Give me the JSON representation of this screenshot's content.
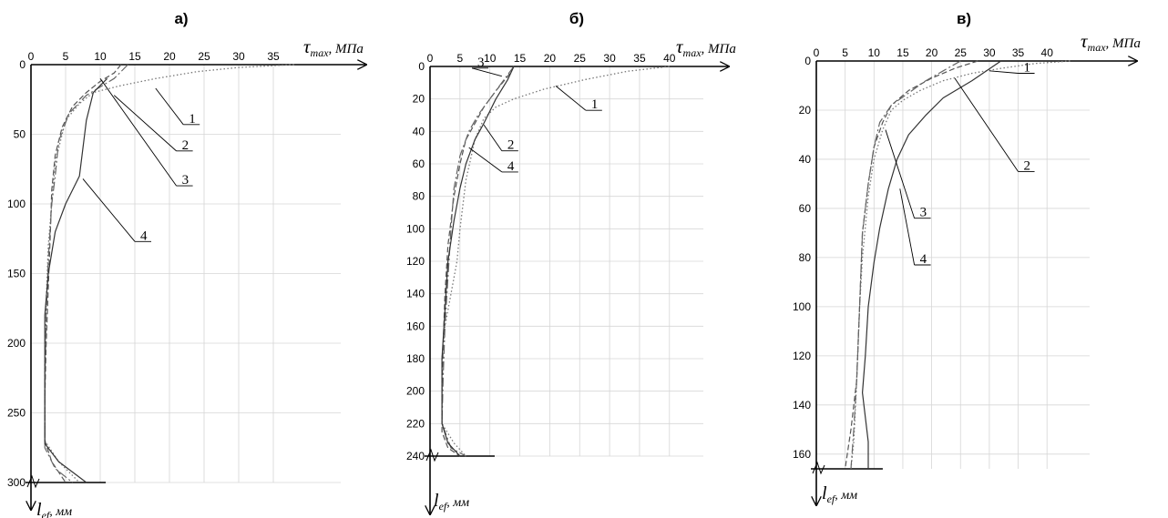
{
  "chart_data": [
    {
      "type": "line",
      "panel_label": "а)",
      "x_axis": {
        "symbol": "τ",
        "subscript": "max",
        "unit": ", МПа",
        "range": [
          0,
          45
        ],
        "ticks": [
          0,
          5,
          10,
          15,
          20,
          25,
          30,
          35
        ]
      },
      "y_axis": {
        "symbol": "l",
        "subscript": "ef",
        "unit": ", мм",
        "range": [
          0,
          300
        ],
        "ticks": [
          0,
          50,
          100,
          150,
          200,
          250,
          300
        ],
        "inverted": true
      },
      "grid": true,
      "series": [
        {
          "name": "1",
          "dash": "1.5,2.5",
          "points": [
            [
              38,
              0
            ],
            [
              30,
              2
            ],
            [
              24,
              5
            ],
            [
              18,
              10
            ],
            [
              13,
              15
            ],
            [
              9,
              20
            ],
            [
              7,
              28
            ],
            [
              5,
              40
            ],
            [
              3.5,
              70
            ],
            [
              3,
              100
            ],
            [
              2.5,
              130
            ],
            [
              2.2,
              170
            ],
            [
              2,
              220
            ],
            [
              2,
              270
            ],
            [
              4,
              285
            ],
            [
              7,
              300
            ]
          ]
        },
        {
          "name": "2",
          "dash": "6,3",
          "points": [
            [
              13,
              0
            ],
            [
              12,
              6
            ],
            [
              10,
              12
            ],
            [
              8,
              20
            ],
            [
              6,
              30
            ],
            [
              4.5,
              45
            ],
            [
              3.5,
              65
            ],
            [
              3,
              90
            ],
            [
              2.8,
              120
            ],
            [
              2.5,
              160
            ],
            [
              2.2,
              200
            ],
            [
              2,
              240
            ],
            [
              2,
              270
            ],
            [
              3,
              285
            ],
            [
              5,
              300
            ]
          ]
        },
        {
          "name": "3",
          "dash": "10,3,2,3",
          "points": [
            [
              14,
              0
            ],
            [
              13,
              5
            ],
            [
              12,
              10
            ],
            [
              10,
              16
            ],
            [
              8,
              22
            ],
            [
              5.5,
              35
            ],
            [
              4,
              55
            ],
            [
              3.5,
              80
            ],
            [
              3,
              100
            ],
            [
              2.5,
              140
            ],
            [
              2.2,
              180
            ],
            [
              2,
              230
            ],
            [
              2,
              275
            ],
            [
              3.5,
              290
            ],
            [
              6,
              300
            ]
          ]
        },
        {
          "name": "4",
          "dash": "",
          "points": [
            [
              11,
              10
            ],
            [
              9,
              20
            ],
            [
              8,
              40
            ],
            [
              7.5,
              60
            ],
            [
              7,
              80
            ],
            [
              5,
              100
            ],
            [
              3.5,
              120
            ],
            [
              2.5,
              150
            ],
            [
              2,
              180
            ],
            [
              2,
              240
            ],
            [
              2,
              272
            ],
            [
              4,
              285
            ],
            [
              8,
              300
            ]
          ]
        }
      ],
      "callouts": [
        {
          "label": "1",
          "anchor": [
            18,
            17
          ],
          "text": [
            22,
            43
          ]
        },
        {
          "label": "2",
          "anchor": [
            12,
            22
          ],
          "text": [
            21,
            62
          ]
        },
        {
          "label": "3",
          "anchor": [
            10,
            10
          ],
          "text": [
            21,
            87
          ]
        },
        {
          "label": "4",
          "anchor": [
            7.5,
            82
          ],
          "text": [
            15,
            127
          ]
        }
      ]
    },
    {
      "type": "line",
      "panel_label": "б)",
      "x_axis": {
        "symbol": "τ",
        "subscript": "max",
        "unit": ", МПа",
        "range": [
          0,
          45
        ],
        "ticks": [
          0,
          5,
          10,
          15,
          20,
          25,
          30,
          35,
          40
        ]
      },
      "y_axis": {
        "symbol": "l",
        "subscript": "ef",
        "unit": ", мм",
        "range": [
          0,
          240
        ],
        "ticks": [
          0,
          20,
          40,
          60,
          80,
          100,
          120,
          140,
          160,
          180,
          200,
          220,
          240
        ],
        "inverted": true
      },
      "grid": true,
      "series": [
        {
          "name": "1",
          "dash": "1.5,2.5",
          "points": [
            [
              40,
              0
            ],
            [
              33,
              3
            ],
            [
              26,
              8
            ],
            [
              19,
              14
            ],
            [
              14,
              20
            ],
            [
              11,
              25
            ],
            [
              9,
              32
            ],
            [
              7.5,
              45
            ],
            [
              6,
              70
            ],
            [
              5,
              100
            ],
            [
              4.5,
              120
            ],
            [
              3.5,
              140
            ],
            [
              2.5,
              160
            ],
            [
              2,
              180
            ],
            [
              2,
              220
            ],
            [
              4,
              232
            ],
            [
              6,
              240
            ]
          ]
        },
        {
          "name": "2",
          "dash": "6,3",
          "points": [
            [
              14,
              0
            ],
            [
              13,
              6
            ],
            [
              11,
              15
            ],
            [
              9,
              25
            ],
            [
              7.5,
              35
            ],
            [
              6,
              45
            ],
            [
              5,
              60
            ],
            [
              4,
              80
            ],
            [
              3,
              110
            ],
            [
              2.5,
              140
            ],
            [
              2.2,
              170
            ],
            [
              2,
              200
            ],
            [
              2,
              225
            ],
            [
              3,
              235
            ],
            [
              5,
              240
            ]
          ]
        },
        {
          "name": "3",
          "dash": "10,3,2,3",
          "points": [
            [
              14,
              0
            ],
            [
              13,
              5
            ],
            [
              12,
              10
            ],
            [
              10,
              20
            ],
            [
              8,
              30
            ],
            [
              6.5,
              40
            ],
            [
              5,
              55
            ],
            [
              4,
              75
            ],
            [
              3.5,
              100
            ],
            [
              3,
              130
            ],
            [
              2.5,
              160
            ],
            [
              2.2,
              190
            ],
            [
              2,
              220
            ],
            [
              3.5,
              235
            ],
            [
              6,
              240
            ]
          ]
        },
        {
          "name": "4",
          "dash": "",
          "points": [
            [
              14,
              0
            ],
            [
              13,
              8
            ],
            [
              11,
              20
            ],
            [
              9,
              35
            ],
            [
              7.5,
              45
            ],
            [
              6,
              60
            ],
            [
              5,
              75
            ],
            [
              4,
              95
            ],
            [
              3,
              120
            ],
            [
              2.5,
              150
            ],
            [
              2,
              180
            ],
            [
              2,
              220
            ],
            [
              3,
              232
            ],
            [
              5,
              240
            ]
          ]
        }
      ],
      "callouts": [
        {
          "label": "1",
          "anchor": [
            21,
            12
          ],
          "text": [
            26,
            27
          ]
        },
        {
          "label": "2",
          "anchor": [
            9,
            36
          ],
          "text": [
            12,
            52
          ]
        },
        {
          "label": "3",
          "anchor": [
            12,
            6
          ],
          "text": [
            7,
            1
          ]
        },
        {
          "label": "4",
          "anchor": [
            6.5,
            50
          ],
          "text": [
            12,
            65
          ]
        }
      ]
    },
    {
      "type": "line",
      "panel_label": "в)",
      "x_axis": {
        "symbol": "τ",
        "subscript": "max",
        "unit": ", МПа",
        "range": [
          0,
          48
        ],
        "ticks": [
          0,
          5,
          10,
          15,
          20,
          25,
          30,
          35,
          40
        ]
      },
      "y_axis": {
        "symbol": "l",
        "subscript": "ef",
        "unit": ", мм",
        "range": [
          0,
          166
        ],
        "ticks": [
          0,
          20,
          40,
          60,
          80,
          100,
          120,
          140,
          160
        ],
        "inverted": true
      },
      "grid": true,
      "series": [
        {
          "name": "1",
          "dash": "1.5,2.5",
          "points": [
            [
              44,
              0
            ],
            [
              38,
              1
            ],
            [
              32,
              3
            ],
            [
              27,
              5
            ],
            [
              22,
              8
            ],
            [
              18,
              12
            ],
            [
              15,
              16
            ],
            [
              13,
              20
            ],
            [
              11.5,
              28
            ],
            [
              10,
              40
            ],
            [
              9,
              55
            ],
            [
              8,
              80
            ],
            [
              7.5,
              100
            ],
            [
              7,
              130
            ],
            [
              6.5,
              155
            ],
            [
              6,
              166
            ]
          ]
        },
        {
          "name": "2",
          "dash": "6,3",
          "points": [
            [
              28,
              0
            ],
            [
              24,
              3
            ],
            [
              20,
              7
            ],
            [
              16,
              12
            ],
            [
              13,
              18
            ],
            [
              11.5,
              25
            ],
            [
              10,
              35
            ],
            [
              9,
              50
            ],
            [
              8,
              70
            ],
            [
              7.5,
              100
            ],
            [
              7,
              130
            ],
            [
              6,
              150
            ],
            [
              5,
              166
            ]
          ]
        },
        {
          "name": "3",
          "dash": "10,3,2,3",
          "points": [
            [
              25,
              0
            ],
            [
              22,
              4
            ],
            [
              19,
              8
            ],
            [
              16,
              13
            ],
            [
              13,
              18
            ],
            [
              11,
              25
            ],
            [
              10,
              35
            ],
            [
              9,
              50
            ],
            [
              8,
              70
            ],
            [
              7.5,
              100
            ],
            [
              7,
              130
            ],
            [
              6.5,
              150
            ],
            [
              6,
              166
            ]
          ]
        },
        {
          "name": "4",
          "dash": "",
          "points": [
            [
              32,
              0
            ],
            [
              27,
              8
            ],
            [
              22,
              15
            ],
            [
              19,
              22
            ],
            [
              16,
              30
            ],
            [
              14,
              40
            ],
            [
              12.5,
              52
            ],
            [
              11,
              68
            ],
            [
              10,
              82
            ],
            [
              9,
              100
            ],
            [
              8.5,
              120
            ],
            [
              8,
              135
            ],
            [
              8.5,
              145
            ],
            [
              9,
              155
            ],
            [
              9,
              166
            ]
          ]
        }
      ],
      "callouts": [
        {
          "label": "1",
          "anchor": [
            30,
            4
          ],
          "text": [
            35,
            5
          ]
        },
        {
          "label": "2",
          "anchor": [
            24,
            7
          ],
          "text": [
            35,
            45
          ]
        },
        {
          "label": "3",
          "anchor": [
            12,
            28
          ],
          "text": [
            17,
            64
          ]
        },
        {
          "label": "4",
          "anchor": [
            14.5,
            52
          ],
          "text": [
            17,
            83
          ]
        }
      ]
    }
  ]
}
